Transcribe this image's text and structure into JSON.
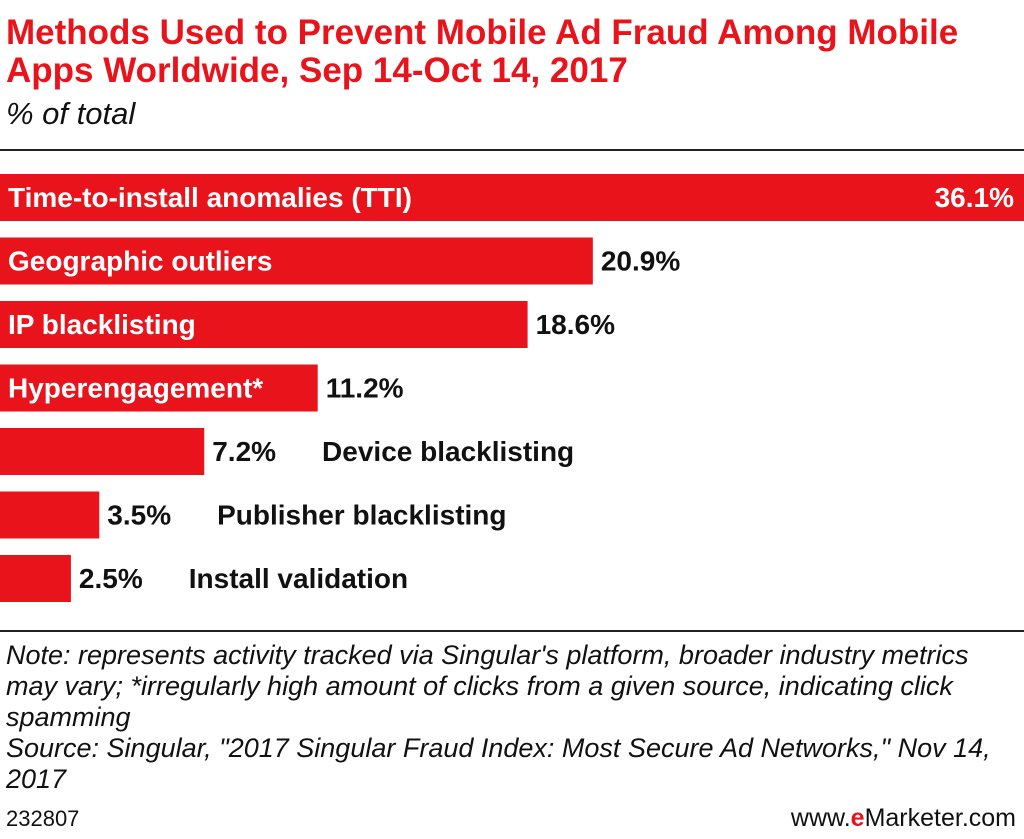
{
  "title": "Methods Used to Prevent Mobile Ad Fraud Among Mobile Apps Worldwide, Sep 14-Oct 14, 2017",
  "subtitle": "% of total",
  "note": "Note: represents activity tracked via Singular's platform, broader industry metrics may vary; *irregularly high amount of clicks from a given source, indicating click spamming",
  "source": "Source: Singular, \"2017 Singular Fraud Index: Most Secure Ad Networks,\" Nov 14, 2017",
  "footer": {
    "id": "232807",
    "brand_prefix": "www.",
    "brand_em": "e",
    "brand_rest": "Marketer.com"
  },
  "colors": {
    "bar": "#e8131b",
    "title": "#e8131b",
    "text": "#111111",
    "bar_label": "#ffffff"
  },
  "chart_data": {
    "type": "bar",
    "orientation": "horizontal",
    "categories": [
      "Time-to-install anomalies (TTI)",
      "Geographic outliers",
      "IP blacklisting",
      "Hyperengagement*",
      "Device blacklisting",
      "Publisher blacklisting",
      "Install validation"
    ],
    "values": [
      36.1,
      20.9,
      18.6,
      11.2,
      7.2,
      3.5,
      2.5
    ],
    "value_labels": [
      "36.1%",
      "20.9%",
      "18.6%",
      "11.2%",
      "7.2%",
      "3.5%",
      "2.5%"
    ],
    "title": "Methods Used to Prevent Mobile Ad Fraud Among Mobile Apps Worldwide, Sep 14-Oct 14, 2017",
    "subtitle": "% of total",
    "xlim": [
      0,
      36.1
    ],
    "grid": false,
    "legend": "none"
  }
}
